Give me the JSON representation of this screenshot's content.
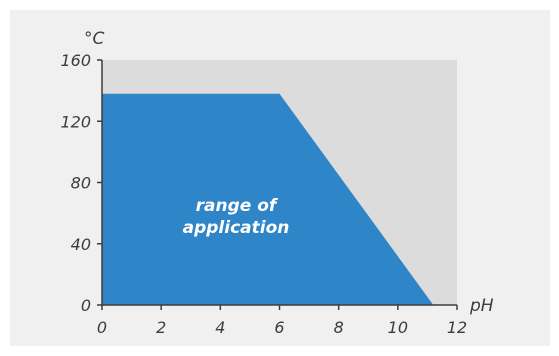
{
  "chart_data": {
    "type": "area",
    "title": "",
    "xlabel": "pH",
    "ylabel": "°C",
    "xlim": [
      0,
      12
    ],
    "ylim": [
      0,
      160
    ],
    "x_ticks": [
      "0",
      "2",
      "4",
      "6",
      "8",
      "10",
      "12"
    ],
    "y_ticks": [
      "0",
      "40",
      "80",
      "120",
      "160"
    ],
    "grid": false,
    "series": [
      {
        "name": "range of application",
        "x": [
          0,
          6,
          11.2
        ],
        "y": [
          138,
          138,
          0
        ]
      }
    ],
    "annotations": [
      {
        "text": "range of application",
        "lines": [
          "range of",
          "application"
        ]
      }
    ]
  },
  "colors": {
    "page_background": "#f0f0f0",
    "plot_background": "#dcdcdc",
    "area_fill": "#2e85c7",
    "axis": "#3c3c3c",
    "text": "#3c3c3c",
    "annotation_text": "#ffffff"
  }
}
